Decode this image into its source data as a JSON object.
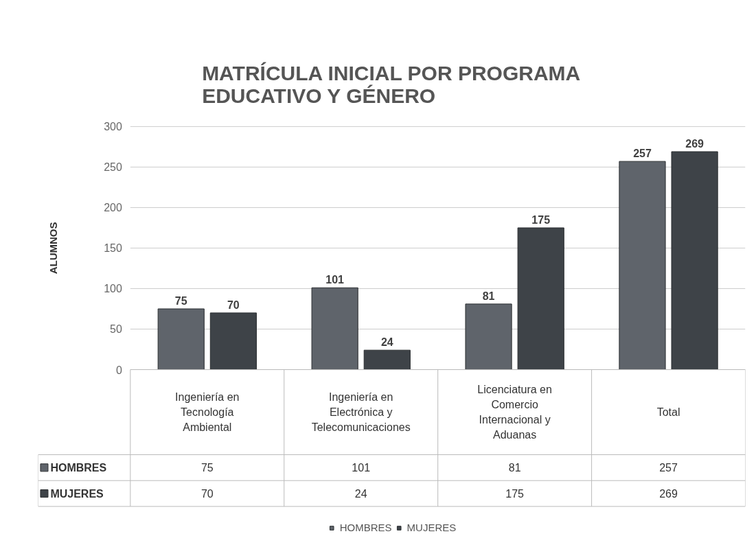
{
  "chart_data": {
    "type": "bar",
    "title": "MATRÍCULA INICIAL POR PROGRAMA EDUCATIVO Y GÉNERO",
    "ylabel": "ALUMNOS",
    "categories": [
      "Ingeniería en Tecnología Ambiental",
      "Ingeniería en Electrónica y Telecomunicaciones",
      "Licenciatura en Comercio Internacional y Aduanas",
      "Total"
    ],
    "series": [
      {
        "name": "HOMBRES",
        "color": "#5f646b",
        "values": [
          75,
          101,
          81,
          257
        ],
        "value_labels": [
          "75",
          "101",
          "81",
          "257"
        ]
      },
      {
        "name": "MUJERES",
        "color": "#3e4348",
        "values": [
          70,
          24,
          175,
          269
        ],
        "value_labels": [
          "70",
          "24",
          "175",
          "269"
        ]
      }
    ],
    "ylim": [
      0,
      300
    ],
    "yticks": [
      0,
      50,
      100,
      150,
      200,
      250,
      300
    ],
    "grid": "y",
    "legend": "bottom",
    "data_labels": true
  }
}
